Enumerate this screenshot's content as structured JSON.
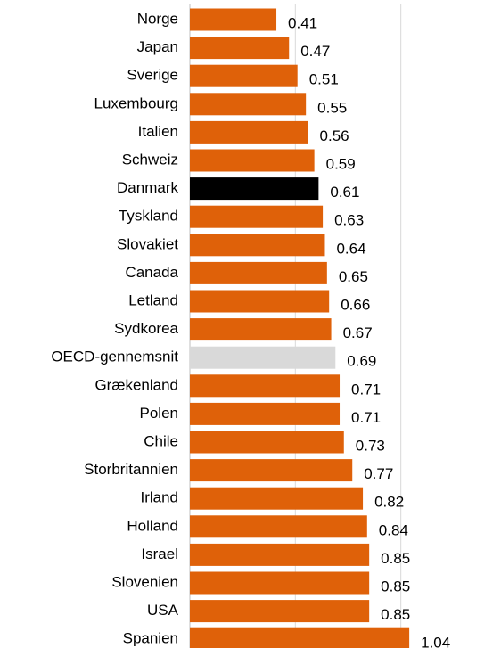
{
  "chart_data": {
    "type": "barh",
    "categories": [
      "Norge",
      "Japan",
      "Sverige",
      "Luxembourg",
      "Italien",
      "Schweiz",
      "Danmark",
      "Tyskland",
      "Slovakiet",
      "Canada",
      "Letland",
      "Sydkorea",
      "OECD-gennemsnit",
      "Grækenland",
      "Polen",
      "Chile",
      "Storbritannien",
      "Irland",
      "Holland",
      "Israel",
      "Slovenien",
      "USA",
      "Spanien"
    ],
    "values": [
      0.41,
      0.47,
      0.51,
      0.55,
      0.56,
      0.59,
      0.61,
      0.63,
      0.64,
      0.65,
      0.66,
      0.67,
      0.69,
      0.71,
      0.71,
      0.73,
      0.77,
      0.82,
      0.84,
      0.85,
      0.85,
      0.85,
      1.04
    ],
    "colors": [
      "#df6109",
      "#df6109",
      "#df6109",
      "#df6109",
      "#df6109",
      "#df6109",
      "#000000",
      "#df6109",
      "#df6109",
      "#df6109",
      "#df6109",
      "#df6109",
      "#d9d9d9",
      "#df6109",
      "#df6109",
      "#df6109",
      "#df6109",
      "#df6109",
      "#df6109",
      "#df6109",
      "#df6109",
      "#df6109",
      "#df6109"
    ],
    "xlim": [
      0,
      1.2
    ],
    "xticks": [
      0,
      0.5,
      1
    ],
    "grid": true,
    "tick_labels": false
  }
}
